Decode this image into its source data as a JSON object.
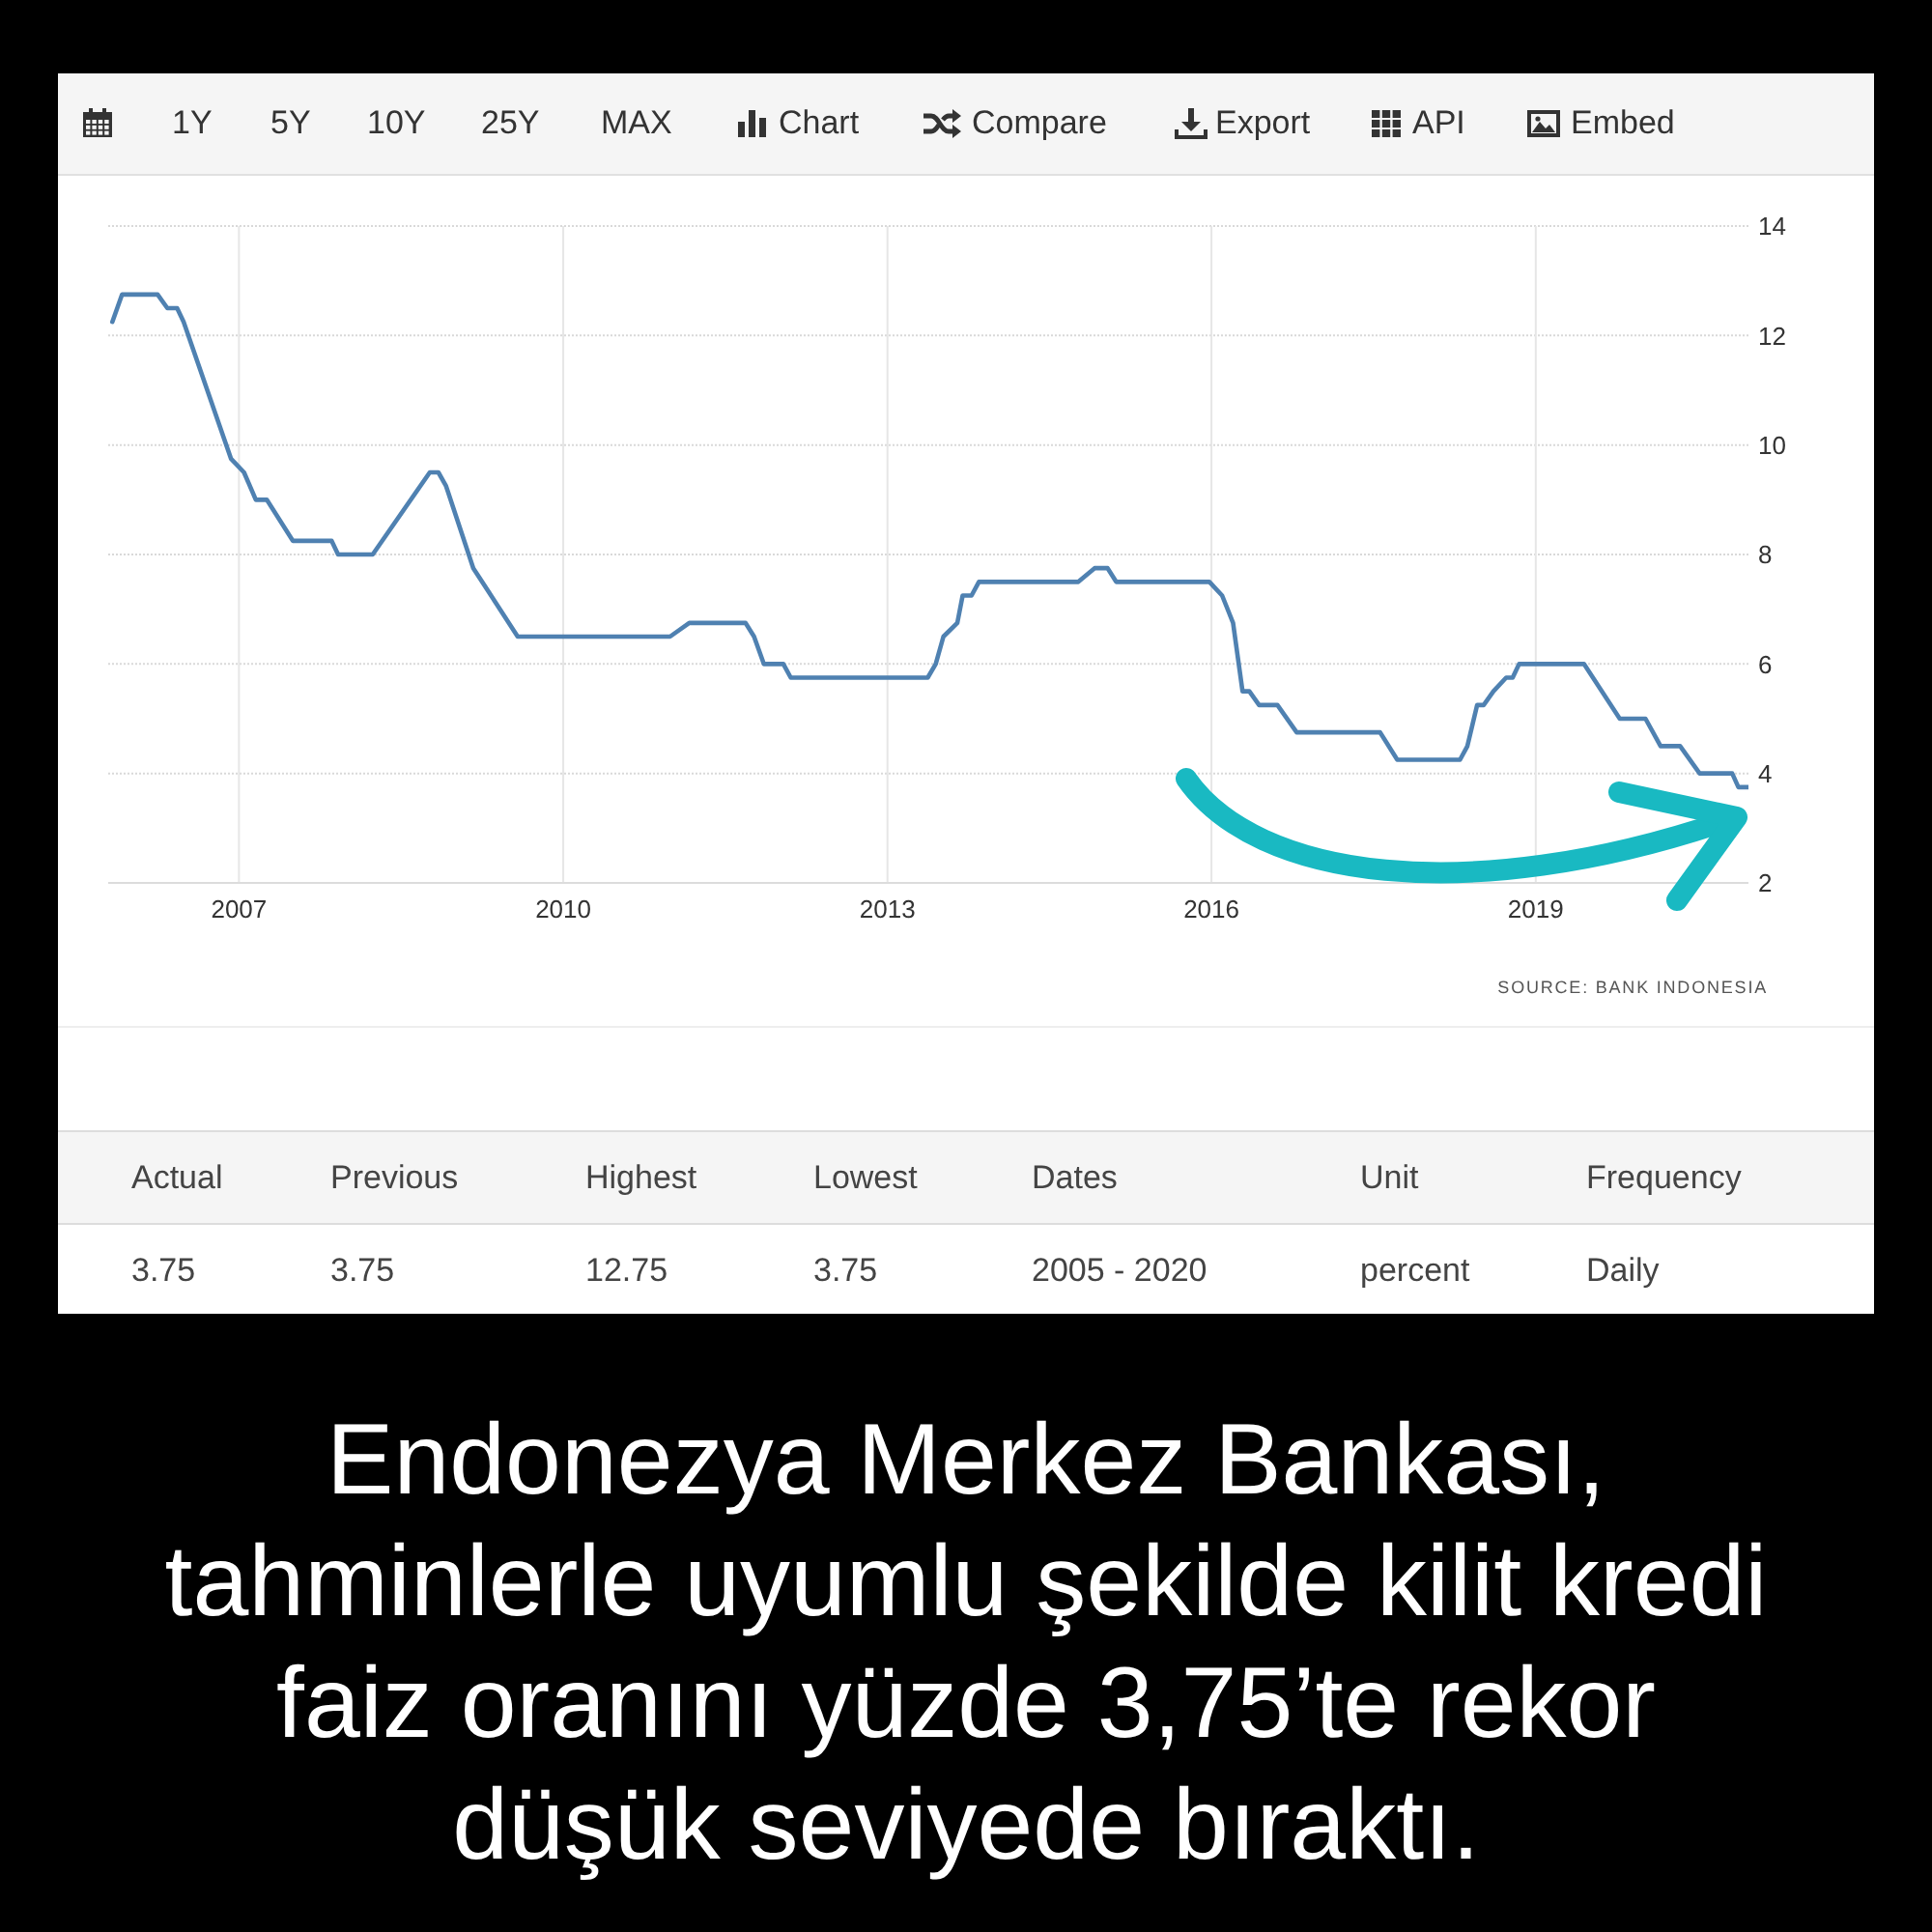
{
  "chart_data": {
    "type": "line",
    "title": "Endonezya Merkez Bankası,\ntahminlerle uyumlu şekilde kilit kredi\nfaiz oranını yüzde 3,75’te rekor\ndüşük seviyede bıraktı.",
    "x": [
      "2005-10-30",
      "2005-12-02",
      "2006-04-01",
      "2006-05-04",
      "2006-06-06",
      "2006-06-28",
      "2006-12-05",
      "2007-01-18",
      "2007-02-27",
      "2007-04-05",
      "2007-07-02",
      "2007-11-10",
      "2007-12-02",
      "2008-03-28",
      "2008-10-07",
      "2008-11-05",
      "2008-12-01",
      "2009-03-03",
      "2009-07-31",
      "2010-12-28",
      "2011-03-03",
      "2011-09-09",
      "2011-10-08",
      "2011-11-10",
      "2012-01-15",
      "2012-02-09",
      "2013-05-17",
      "2013-06-13",
      "2013-07-09",
      "2013-08-25",
      "2013-09-12",
      "2013-10-12",
      "2013-11-06",
      "2014-10-08",
      "2014-12-02",
      "2015-01-15",
      "2015-02-13",
      "2015-12-25",
      "2016-02-06",
      "2016-03-14",
      "2016-04-15",
      "2016-05-08",
      "2016-06-10",
      "2016-08-11",
      "2016-10-15",
      "2017-07-24",
      "2017-09-20",
      "2018-04-20",
      "2018-05-15",
      "2018-06-17",
      "2018-07-09",
      "2018-08-11",
      "2018-09-23",
      "2018-10-15",
      "2018-11-06",
      "2019-06-13",
      "2019-10-12",
      "2020-01-07",
      "2020-02-27",
      "2020-05-03",
      "2020-07-08",
      "2020-10-26",
      "2020-11-16",
      "2020-12-20"
    ],
    "values": [
      12.25,
      12.75,
      12.75,
      12.5,
      12.5,
      12.25,
      9.75,
      9.5,
      9.0,
      9.0,
      8.25,
      8.25,
      8.0,
      8.0,
      9.5,
      9.5,
      9.25,
      7.75,
      6.5,
      6.5,
      6.75,
      6.75,
      6.5,
      6.0,
      6.0,
      5.75,
      5.75,
      6.0,
      6.5,
      6.75,
      7.25,
      7.25,
      7.5,
      7.5,
      7.75,
      7.75,
      7.5,
      7.5,
      7.25,
      6.75,
      5.5,
      5.5,
      5.25,
      5.25,
      4.75,
      4.75,
      4.25,
      4.25,
      4.5,
      5.25,
      5.25,
      5.5,
      5.75,
      5.75,
      6.0,
      6.0,
      5.0,
      5.0,
      4.5,
      4.5,
      4.0,
      4.0,
      3.75,
      3.75
    ],
    "color": "#4f81b1",
    "xlim": [
      "2005-10-16",
      "2020-12-20"
    ],
    "xticks": [
      "2007",
      "2010",
      "2013",
      "2016",
      "2019"
    ],
    "ylim": [
      2,
      14
    ],
    "yticks": [
      2,
      4,
      6,
      8,
      10,
      12,
      14
    ],
    "grid": true,
    "annotations": [
      "1Y",
      "5Y",
      "10Y",
      "25Y",
      "MAX",
      "Chart",
      "Compare",
      "Export",
      "API",
      "Embed",
      "SOURCE: BANK INDONESIA",
      "Actual",
      "Previous",
      "Highest",
      "Lowest",
      "Dates",
      "Unit",
      "Frequency",
      "3.75",
      "3.75",
      "12.75",
      "3.75",
      "2005 - 2020",
      "percent",
      "Daily"
    ]
  }
}
